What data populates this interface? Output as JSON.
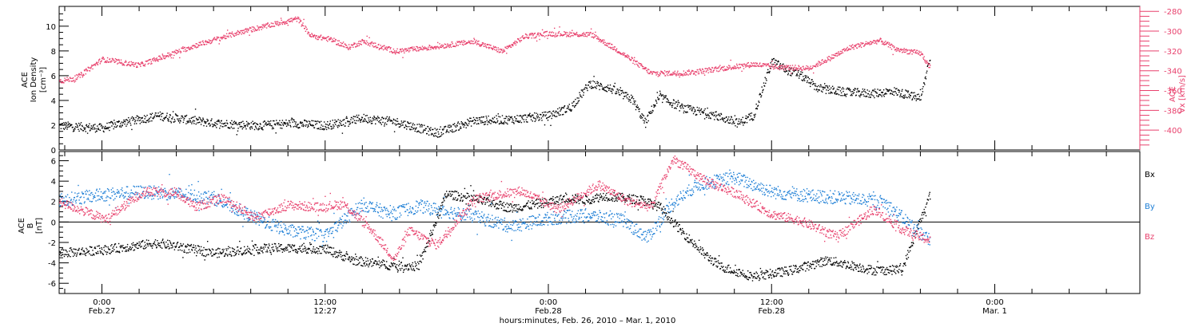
{
  "chart_data": [
    {
      "type": "scatter",
      "panel": "ion-density-and-vx",
      "ylabel_left": [
        "ACE",
        "Ion Density",
        "[cm⁻³]"
      ],
      "ylabel_right": [
        "ACE",
        "Vx [km/s]"
      ],
      "ylim_left": [
        0,
        11.6
      ],
      "yticks_left": [
        0,
        2,
        4,
        6,
        8,
        10
      ],
      "ylim_right": [
        -420,
        -275
      ],
      "yticks_right": [
        -400,
        -380,
        -360,
        -340,
        -320,
        -300,
        -280
      ],
      "colors": {
        "density": "#000000",
        "vx": "#e8416d"
      },
      "series": [
        {
          "axis": "left",
          "color": "#000000",
          "knots_x": [
            -2.3,
            0,
            1,
            3,
            6,
            8.5,
            10.2,
            12,
            14,
            15.8,
            18,
            20,
            22,
            24,
            25.2,
            26.2,
            27.3,
            28.5,
            29.2,
            29.6,
            30,
            31.2,
            32.8,
            34.2,
            35,
            36,
            36.8,
            37.5,
            38.5,
            40,
            41.5,
            42.5,
            44,
            44.5
          ],
          "knots_y": [
            2,
            1.8,
            2.2,
            2.8,
            2.2,
            2,
            2.2,
            2,
            2.6,
            2.3,
            1.4,
            2.4,
            2.5,
            2.8,
            3.5,
            5.4,
            5,
            4.1,
            2.2,
            3.5,
            4.3,
            3.4,
            2.9,
            2.2,
            2.8,
            7.2,
            6.5,
            6.1,
            5,
            4.7,
            4.6,
            4.8,
            4.2,
            7.6
          ]
        },
        {
          "axis": "right",
          "color": "#e8416d",
          "knots_x": [
            -2.3,
            -1.4,
            0,
            2,
            5,
            7.5,
            10.5,
            11.2,
            12.3,
            13.2,
            14,
            15.8,
            17.6,
            20,
            21.5,
            22.7,
            24,
            26.3,
            27.8,
            29.5,
            31.2,
            33,
            35,
            36.3,
            38,
            39.2,
            40.2,
            41.8,
            42.7,
            44,
            44.5
          ],
          "knots_y": [
            -350,
            -347,
            -328,
            -334,
            -314,
            -300,
            -287,
            -304,
            -308,
            -316,
            -310,
            -320,
            -316,
            -310,
            -320,
            -305,
            -302,
            -303,
            -320,
            -342,
            -342,
            -338,
            -333,
            -336,
            -337,
            -326,
            -316,
            -309,
            -318,
            -322,
            -336
          ]
        }
      ]
    },
    {
      "type": "scatter",
      "panel": "magnetic-field",
      "ylabel": [
        "ACE",
        "B",
        "[nT]"
      ],
      "ylim": [
        -7,
        6.9
      ],
      "yticks": [
        -6,
        -4,
        -2,
        0,
        2,
        4,
        6
      ],
      "series": [
        {
          "name": "Bx",
          "color": "#000000",
          "knots_x": [
            -2.3,
            0,
            3,
            6,
            9,
            12,
            13.5,
            15.5,
            17,
            18.5,
            20,
            22,
            24,
            25,
            26,
            27,
            29,
            30,
            31,
            32.3,
            33.2,
            35,
            37,
            39,
            40.5,
            41.5,
            43,
            44.5
          ],
          "knots_y": [
            -3,
            -2.7,
            -2,
            -3,
            -2.5,
            -2.6,
            -3.7,
            -4.2,
            -4.3,
            2.8,
            2.3,
            1.4,
            2,
            2.4,
            2.2,
            2.6,
            2.2,
            1.5,
            -0.6,
            -3,
            -4.3,
            -5.3,
            -4.7,
            -3.7,
            -4.3,
            -4.7,
            -4.6,
            2.7
          ]
        },
        {
          "name": "By",
          "color": "#1e7fd6",
          "knots_x": [
            -2.3,
            0,
            2,
            4,
            6,
            8.5,
            10,
            12,
            14,
            15.5,
            17,
            20,
            22,
            24,
            26,
            28,
            29.3,
            30.6,
            32,
            34,
            36,
            38,
            40,
            42,
            44.5
          ],
          "knots_y": [
            2.2,
            2.7,
            3,
            2.8,
            2.4,
            0.2,
            -0.8,
            -1.3,
            1.8,
            0.8,
            1.6,
            0.6,
            -0.4,
            0.4,
            0.7,
            0.2,
            -1.5,
            1.8,
            3.7,
            4.4,
            3,
            2.6,
            2.4,
            2,
            -1.8
          ]
        },
        {
          "name": "Bz",
          "color": "#e8416d",
          "knots_x": [
            -2.3,
            0.2,
            2.2,
            4,
            5,
            6.5,
            8.2,
            10,
            11.6,
            13,
            14.5,
            15.7,
            16.5,
            18,
            20,
            22.5,
            24.5,
            26.7,
            28.2,
            29.5,
            30.7,
            32.5,
            34,
            36,
            37.5,
            39.5,
            41.5,
            43,
            44.5
          ],
          "knots_y": [
            2,
            0.3,
            3,
            2.9,
            1.5,
            2.4,
            0.5,
            1.7,
            1.5,
            1.8,
            -0.8,
            -3.6,
            -0.8,
            -2.2,
            2.3,
            3.1,
            1.3,
            3.7,
            2.1,
            1.5,
            6.2,
            4,
            2.9,
            0.8,
            0.2,
            -1.4,
            1.3,
            -0.7,
            -1.8
          ]
        }
      ]
    }
  ],
  "panels": {
    "top": {
      "ylabel_line1": "ACE",
      "ylabel_line2": "Ion Density",
      "ylabel_line3": "[cm⁻³]",
      "y2label_line1": "ACE",
      "y2label_line2": "Vx [km/s]"
    },
    "bottom": {
      "ylabel_line1": "ACE",
      "ylabel_line2": "B",
      "ylabel_line3": "[nT]",
      "legend": [
        {
          "label": "Bx",
          "color": "#000000"
        },
        {
          "label": "By",
          "color": "#1e7fd6"
        },
        {
          "label": "Bz",
          "color": "#e8416d"
        }
      ]
    }
  },
  "xaxis": {
    "ticks": [
      {
        "hour": 0,
        "time": "0:00",
        "date": "Feb.27"
      },
      {
        "hour": 12,
        "time": "12:00",
        "date": "12:27"
      },
      {
        "hour": 24,
        "time": "0:00",
        "date": "Feb.28"
      },
      {
        "hour": 36,
        "time": "12:00",
        "date": "Feb.28"
      },
      {
        "hour": 48,
        "time": "0:00",
        "date": "Mar. 1"
      }
    ],
    "minor_tick_step_hours": 2,
    "range_hours": [
      -2.3,
      55.8
    ],
    "label": "hours:minutes, Feb. 26, 2010 – Mar. 1, 2010"
  }
}
